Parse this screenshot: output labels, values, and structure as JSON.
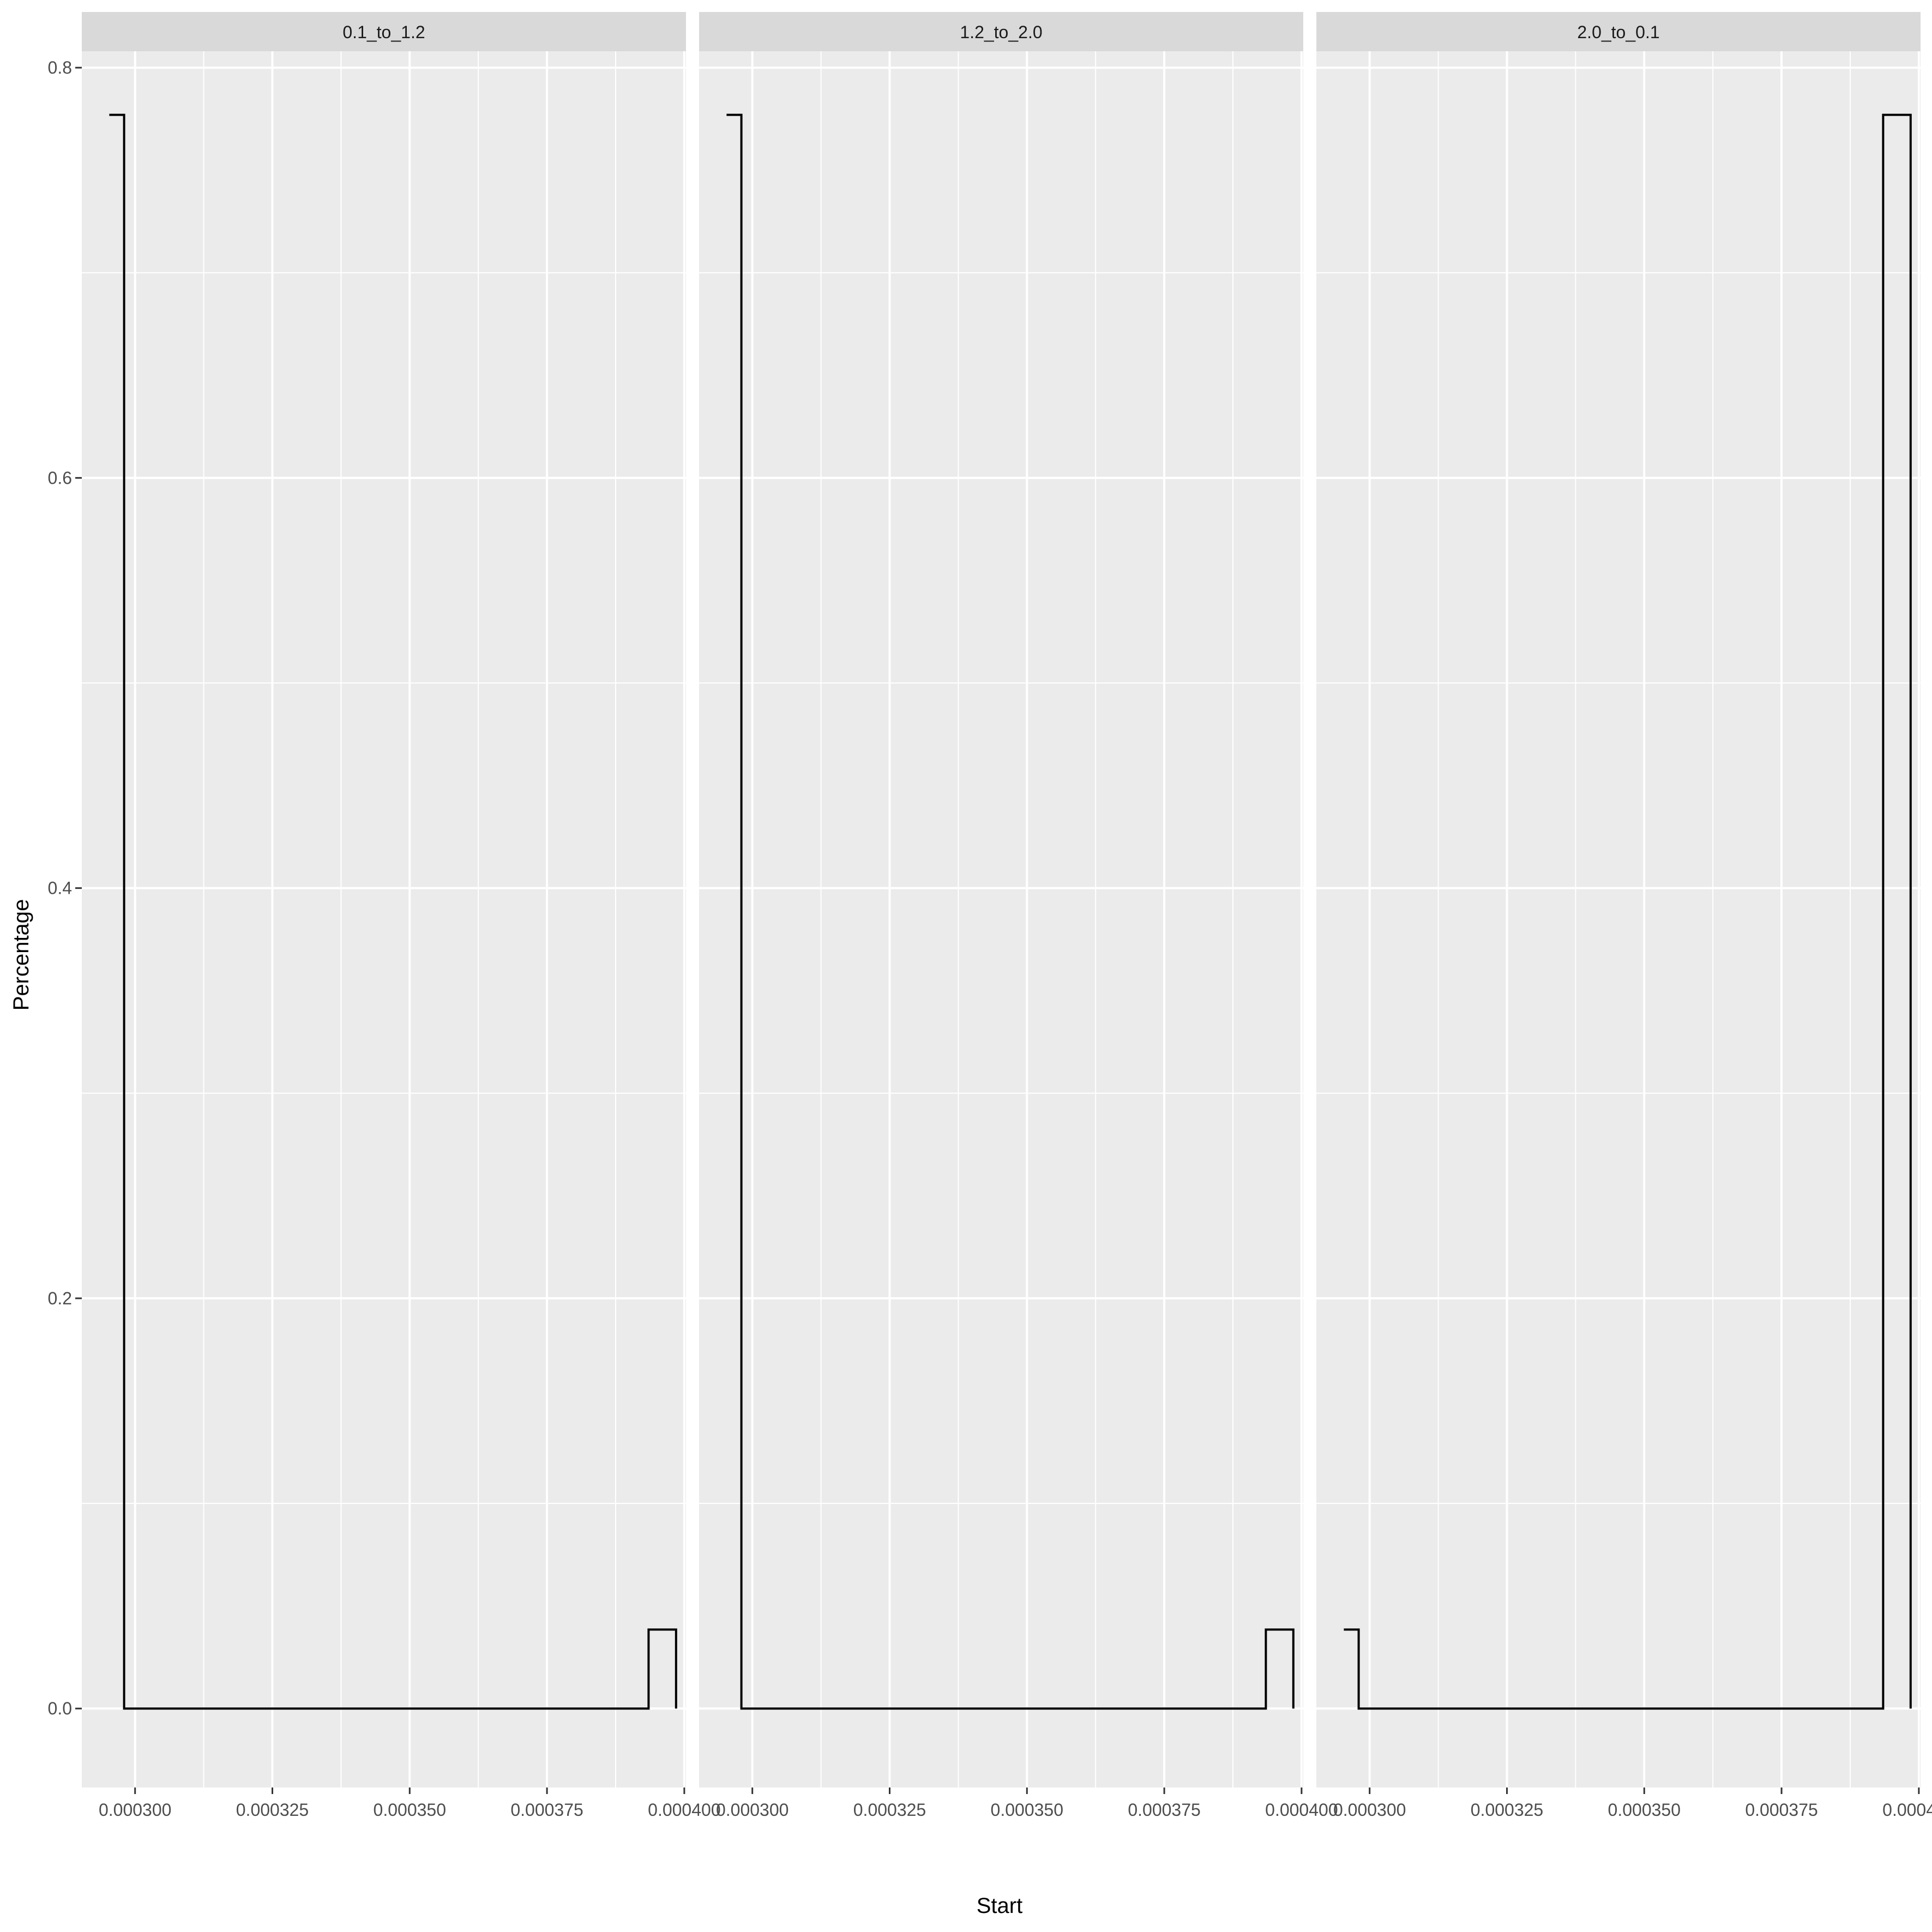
{
  "chart_data": {
    "type": "line",
    "step": true,
    "xlabel": "Start",
    "ylabel": "Percentage",
    "xlim": [
      0.0002903,
      0.00040031
    ],
    "ylim": [
      -0.0385,
      0.808
    ],
    "x_ticks": [
      0.0003,
      0.000325,
      0.00035,
      0.000375,
      0.0004
    ],
    "x_tick_labels": [
      "0.000300",
      "0.000325",
      "0.000350",
      "0.000375",
      "0.000400"
    ],
    "y_ticks": [
      0.0,
      0.2,
      0.4,
      0.6,
      0.8
    ],
    "y_tick_labels": [
      "0.0",
      "0.2",
      "0.4",
      "0.6",
      "0.8"
    ],
    "grid": true,
    "panels": [
      {
        "strip": "0.1_to_1.2",
        "x": [
          0.0002953,
          0.000298,
          0.000298,
          0.0003935,
          0.0003935,
          0.0003985,
          0.0003985
        ],
        "y": [
          0.777,
          0.777,
          0.0,
          0.0,
          0.0385,
          0.0385,
          0.0
        ]
      },
      {
        "strip": "1.2_to_2.0",
        "x": [
          0.0002953,
          0.000298,
          0.000298,
          0.0003935,
          0.0003935,
          0.0003985,
          0.0003985
        ],
        "y": [
          0.777,
          0.777,
          0.0,
          0.0,
          0.0385,
          0.0385,
          0.0
        ]
      },
      {
        "strip": "2.0_to_0.1",
        "x": [
          0.0002953,
          0.000298,
          0.000298,
          0.0003935,
          0.0003935,
          0.0003985,
          0.0003985
        ],
        "y": [
          0.0385,
          0.0385,
          0.0,
          0.0,
          0.777,
          0.777,
          0.0
        ]
      }
    ]
  },
  "colors": {
    "panel_bg": "#ebebeb",
    "strip_bg": "#d9d9d9",
    "grid": "#ffffff",
    "line": "#000000",
    "tick_text": "#4d4d4d"
  }
}
